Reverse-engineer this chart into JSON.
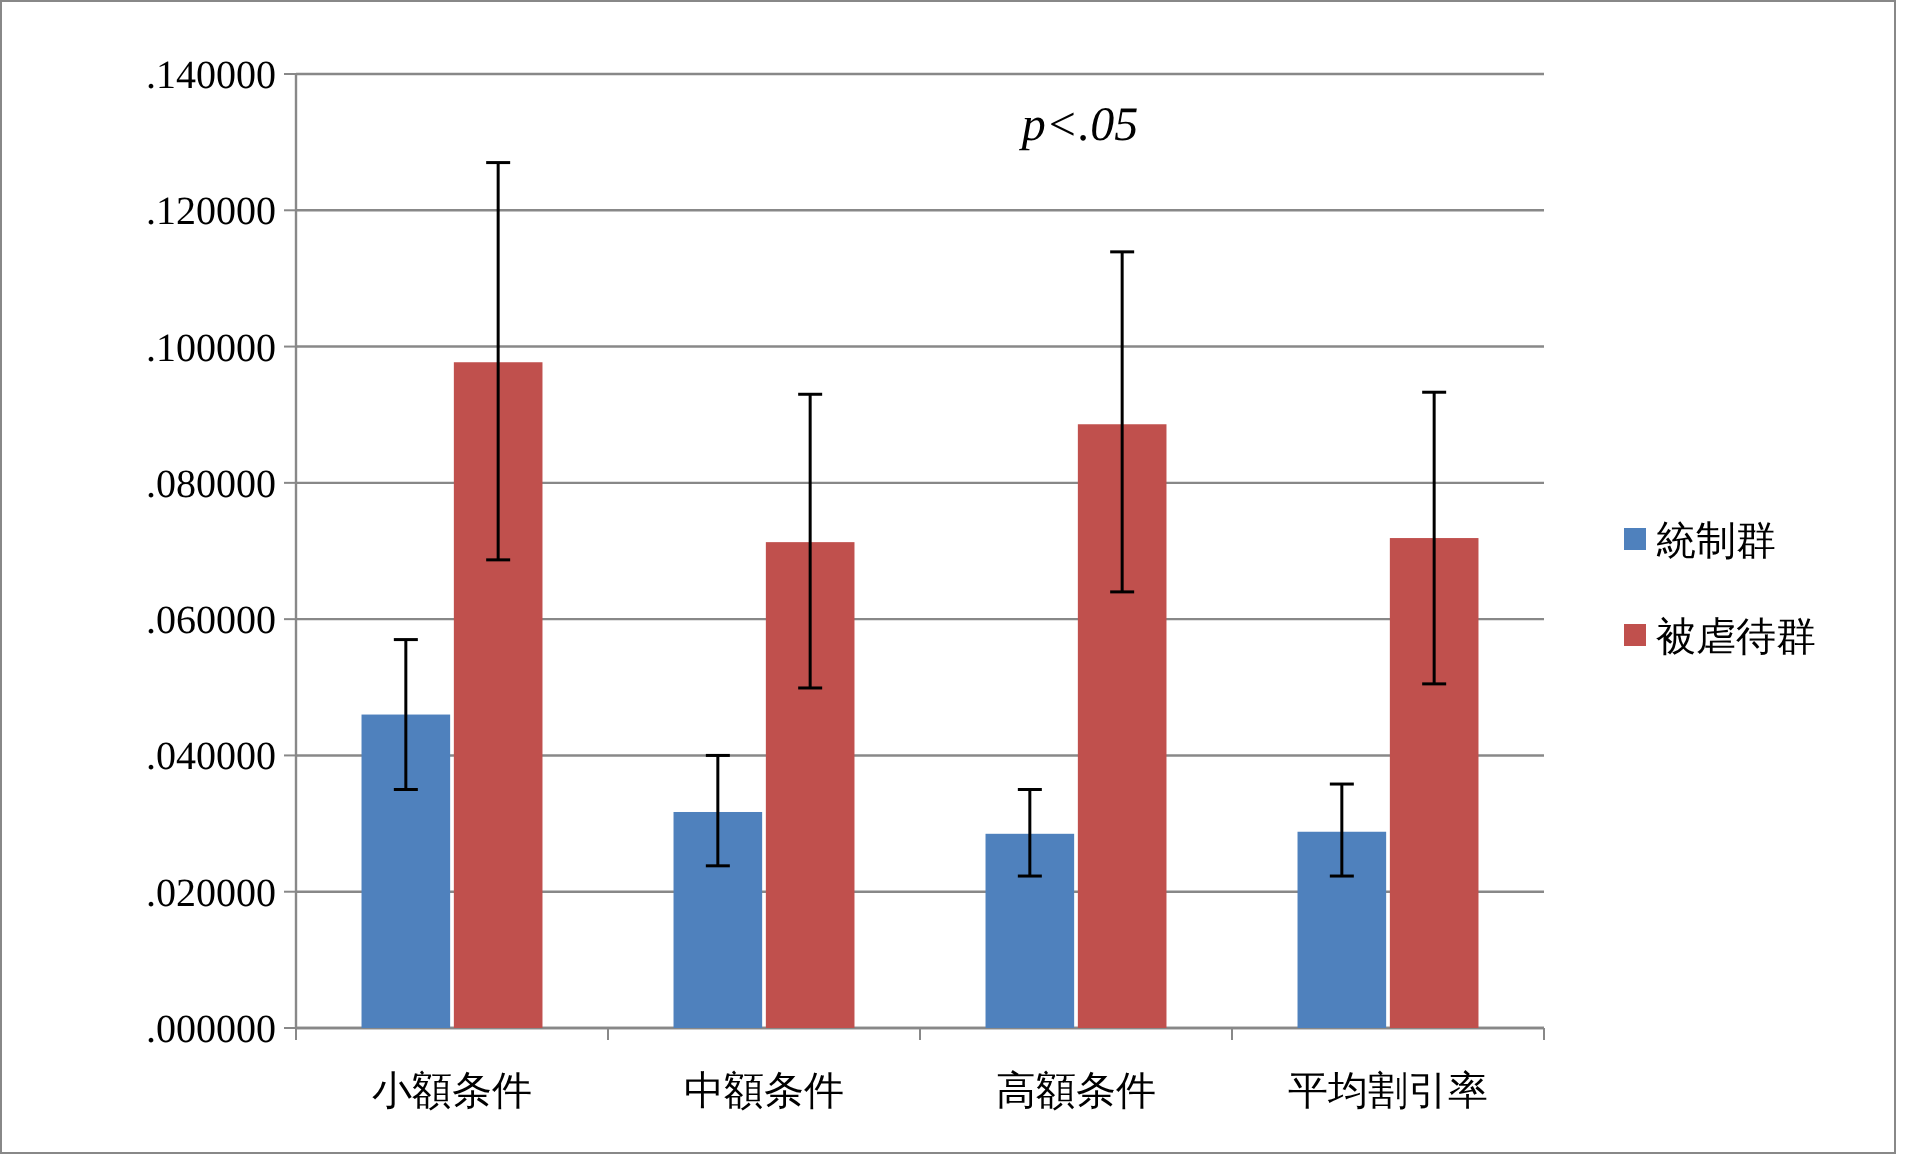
{
  "chart_data": {
    "type": "bar",
    "categories": [
      "小額条件",
      "中額条件",
      "高額条件",
      "平均割引率"
    ],
    "series": [
      {
        "name": "統制群",
        "color": "#4f81bd",
        "values": [
          0.046,
          0.0317,
          0.0285,
          0.0288
        ],
        "errors": [
          [
            0.035,
            0.057
          ],
          [
            0.0238,
            0.04
          ],
          [
            0.0223,
            0.035
          ],
          [
            0.0223,
            0.0358
          ]
        ]
      },
      {
        "name": "被虐待群",
        "color": "#c0504d",
        "values": [
          0.0977,
          0.0713,
          0.0886,
          0.0719
        ],
        "errors": [
          [
            0.0687,
            0.127
          ],
          [
            0.0499,
            0.093
          ],
          [
            0.064,
            0.1139
          ],
          [
            0.0505,
            0.0933
          ]
        ]
      }
    ],
    "ylim": [
      0,
      0.14
    ],
    "yticks": [
      {
        "value": 0,
        "label": ".000000"
      },
      {
        "value": 0.02,
        "label": ".020000"
      },
      {
        "value": 0.04,
        "label": ".040000"
      },
      {
        "value": 0.06,
        "label": ".060000"
      },
      {
        "value": 0.08,
        "label": ".080000"
      },
      {
        "value": 0.1,
        "label": ".100000"
      },
      {
        "value": 0.12,
        "label": ".120000"
      },
      {
        "value": 0.14,
        "label": ".140000"
      }
    ],
    "grid": "y",
    "legend": "right",
    "annotations": [
      "p<.05"
    ]
  }
}
